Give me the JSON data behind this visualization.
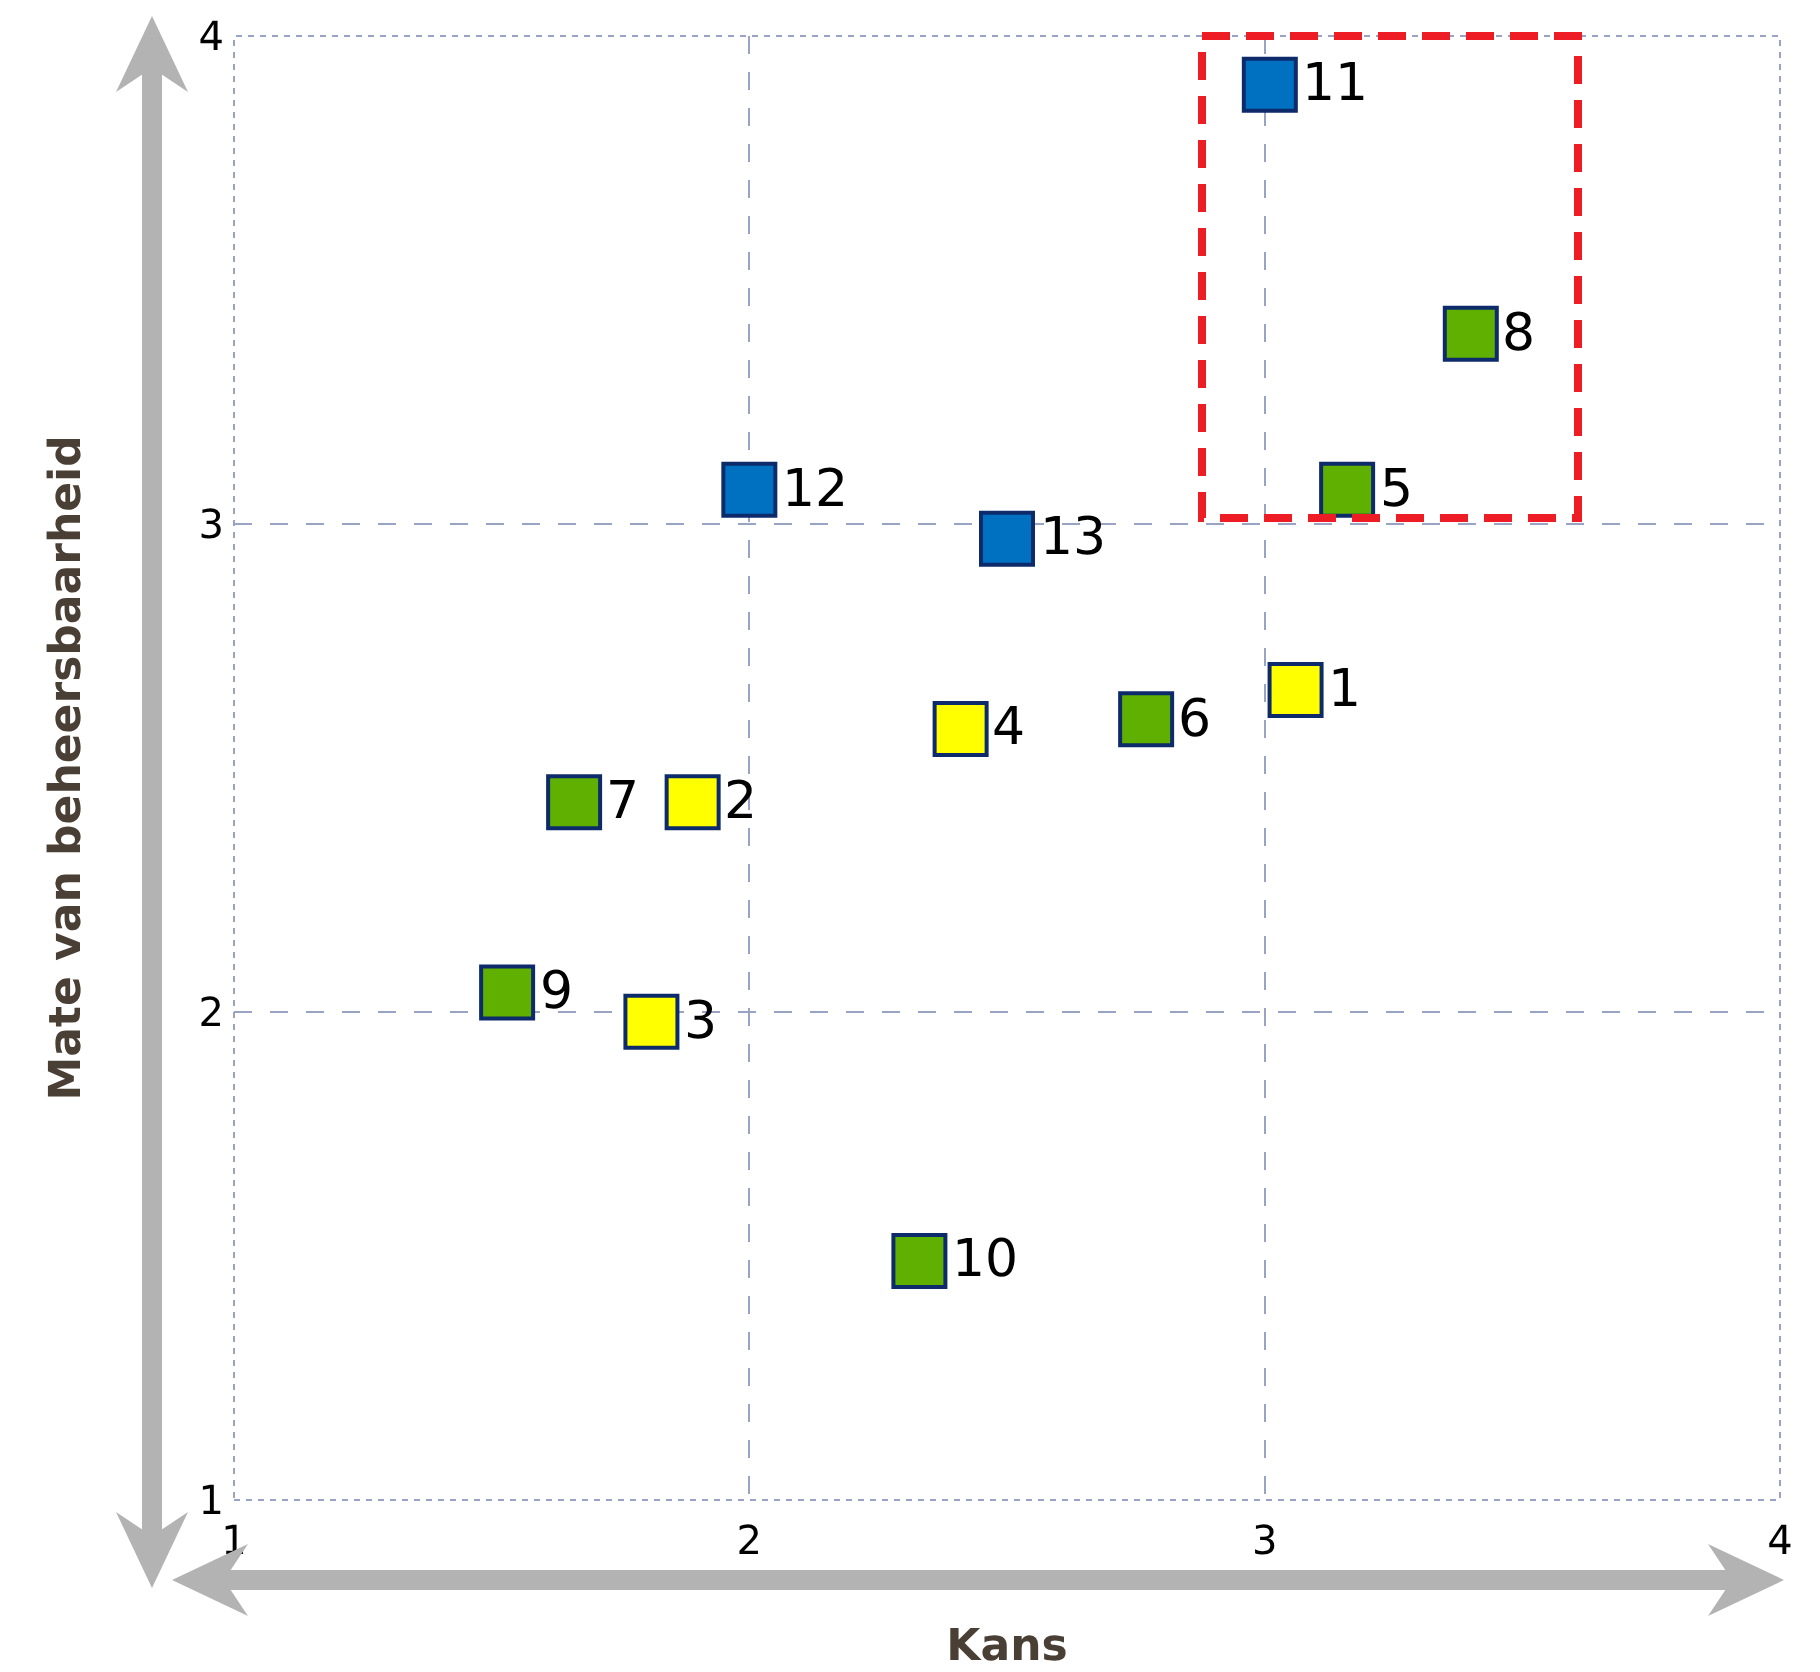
{
  "chart_data": {
    "type": "scatter",
    "xlabel": "Kans",
    "ylabel": "Mate van beheersbaarheid",
    "xlim": [
      1,
      4
    ],
    "xticks": [
      1,
      2,
      3,
      4
    ],
    "ylim": [
      1,
      4
    ],
    "yticks": [
      1,
      2,
      3,
      4
    ],
    "grid": true,
    "marker": "square",
    "series": [
      {
        "color": "#ffff00",
        "x": [
          3.06,
          1.89,
          1.81,
          2.41
        ],
        "values": [
          2.66,
          2.43,
          1.98,
          2.58
        ]
      },
      {
        "color": "#5fb000",
        "x": [
          3.16,
          2.77,
          1.66,
          3.4,
          1.53,
          2.33
        ],
        "values": [
          3.07,
          2.6,
          2.43,
          3.39,
          2.04,
          1.49
        ]
      },
      {
        "color": "#0070c0",
        "x": [
          3.01,
          2.0,
          2.5
        ],
        "values": [
          3.9,
          3.07,
          2.97
        ]
      }
    ],
    "annotations": [
      {
        "text": "1",
        "x": 3.06,
        "y": 2.66
      },
      {
        "text": "2",
        "x": 1.89,
        "y": 2.43
      },
      {
        "text": "3",
        "x": 1.81,
        "y": 1.98
      },
      {
        "text": "4",
        "x": 2.41,
        "y": 2.58
      },
      {
        "text": "5",
        "x": 3.16,
        "y": 3.07
      },
      {
        "text": "6",
        "x": 2.77,
        "y": 2.6
      },
      {
        "text": "7",
        "x": 1.66,
        "y": 2.43
      },
      {
        "text": "8",
        "x": 3.4,
        "y": 3.39
      },
      {
        "text": "9",
        "x": 1.53,
        "y": 2.04
      },
      {
        "text": "10",
        "x": 2.33,
        "y": 1.49
      },
      {
        "text": "11",
        "x": 3.01,
        "y": 3.9
      },
      {
        "text": "12",
        "x": 2.0,
        "y": 3.07
      },
      {
        "text": "13",
        "x": 2.5,
        "y": 2.97
      }
    ]
  }
}
